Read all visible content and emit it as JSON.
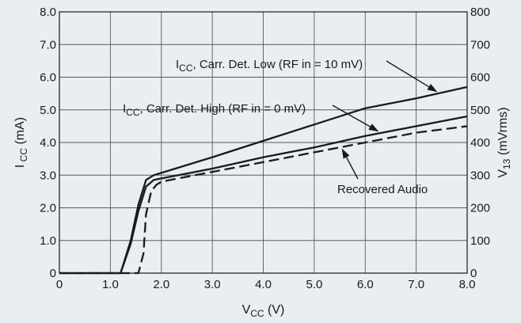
{
  "chart_data": {
    "type": "line",
    "xlabel": {
      "main": "V",
      "sub": "CC",
      "rest": " (V)"
    },
    "ylabel_left": {
      "main": "I",
      "sub": " CC",
      "rest": " (mA)"
    },
    "ylabel_right": {
      "main": "V",
      "sub": "13",
      "rest": " (mVrms)"
    },
    "xlim": [
      0,
      8
    ],
    "ylim_left": [
      0,
      8
    ],
    "ylim_right": [
      0,
      800
    ],
    "x_ticks": [
      "0",
      "1.0",
      "2.0",
      "3.0",
      "4.0",
      "5.0",
      "6.0",
      "7.0",
      "8.0"
    ],
    "y_left_ticks": [
      "0",
      "1.0",
      "2.0",
      "3.0",
      "4.0",
      "5.0",
      "6.0",
      "7.0",
      "8.0"
    ],
    "y_right_ticks": [
      "0",
      "100",
      "200",
      "300",
      "400",
      "500",
      "600",
      "700",
      "800"
    ],
    "grid": true,
    "series": [
      {
        "name": "I_CC, Carr. Det. Low (RF in = 10 mV)",
        "axis": "left",
        "style": "solid",
        "x": [
          0,
          1.2,
          1.4,
          1.55,
          1.7,
          1.85,
          2.0,
          3.0,
          4.0,
          5.0,
          6.0,
          7.0,
          8.0
        ],
        "y": [
          0,
          0,
          1.0,
          2.1,
          2.85,
          3.0,
          3.07,
          3.55,
          4.05,
          4.55,
          5.05,
          5.35,
          5.7
        ]
      },
      {
        "name": "I_CC, Carr. Det. High (RF in = 0 mV)",
        "axis": "left",
        "style": "solid",
        "x": [
          0,
          1.2,
          1.4,
          1.55,
          1.7,
          1.85,
          2.0,
          3.0,
          4.0,
          5.0,
          6.0,
          7.0,
          8.0
        ],
        "y": [
          0,
          0,
          0.9,
          1.9,
          2.65,
          2.85,
          2.9,
          3.2,
          3.55,
          3.85,
          4.2,
          4.5,
          4.8
        ]
      },
      {
        "name": "Recovered Audio",
        "axis": "right",
        "style": "dashed",
        "x": [
          0,
          1.55,
          1.65,
          1.7,
          1.8,
          1.9,
          2.0,
          3.0,
          4.0,
          5.0,
          6.0,
          7.0,
          8.0
        ],
        "y": [
          0,
          0,
          60,
          180,
          250,
          270,
          280,
          310,
          340,
          370,
          400,
          430,
          450
        ]
      }
    ],
    "annotations": [
      {
        "main": "I",
        "sub": "CC",
        "rest": ", Carr. Det. Low (RF in = 10 mV)",
        "series": 0
      },
      {
        "main": "I",
        "sub": "CC",
        "rest": ", Carr. Det. High (RF in = 0 mV)",
        "series": 1
      },
      {
        "main": "Recovered Audio",
        "sub": "",
        "rest": "",
        "series": 2
      }
    ]
  }
}
